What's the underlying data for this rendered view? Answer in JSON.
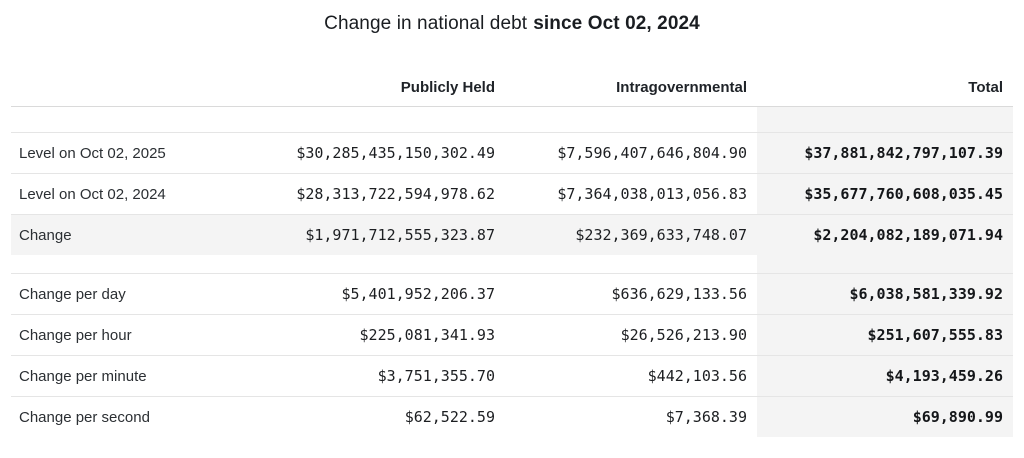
{
  "title": {
    "text": "Change in national debt",
    "emphasis": "since Oct 02, 2024"
  },
  "chart_data": {
    "type": "table",
    "title": "Change in national debt since Oct 02, 2024",
    "columns": [
      "",
      "Publicly Held",
      "Intragovernmental",
      "Total"
    ],
    "rows": [
      [
        "Level on Oct 02, 2025",
        "$30,285,435,150,302.49",
        "$7,596,407,646,804.90",
        "$37,881,842,797,107.39"
      ],
      [
        "Level on Oct 02, 2024",
        "$28,313,722,594,978.62",
        "$7,364,038,013,056.83",
        "$35,677,760,608,035.45"
      ],
      [
        "Change",
        "$1,971,712,555,323.87",
        "$232,369,633,748.07",
        "$2,204,082,189,071.94"
      ],
      [
        "Change per day",
        "$5,401,952,206.37",
        "$636,629,133.56",
        "$6,038,581,339.92"
      ],
      [
        "Change per hour",
        "$225,081,341.93",
        "$26,526,213.90",
        "$251,607,555.83"
      ],
      [
        "Change per minute",
        "$3,751,355.70",
        "$442,103.56",
        "$4,193,459.26"
      ],
      [
        "Change per second",
        "$62,522.59",
        "$7,368.39",
        "$69,890.99"
      ]
    ],
    "groups": [
      [
        0,
        1,
        2
      ],
      [
        3,
        4,
        5,
        6
      ]
    ],
    "highlighted_row": "Change",
    "highlighted_column": "Total",
    "value_alignment": "right",
    "grid": "horizontal-rules"
  },
  "colors": {
    "highlight_bg": "#f4f4f4",
    "total_column_bg": "#f4f4f4",
    "row_border": "#e5e5e5",
    "header_border": "#dadada",
    "text": "#1f2328"
  }
}
